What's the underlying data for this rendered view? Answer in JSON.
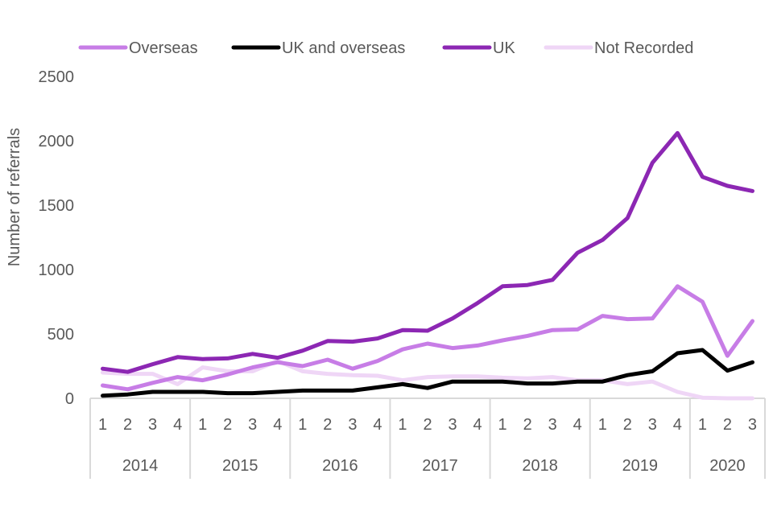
{
  "chart_data": {
    "type": "line",
    "title": "",
    "xlabel": "",
    "ylabel": "Number of referrals",
    "ylim": [
      0,
      2500
    ],
    "yticks": [
      "0",
      "500",
      "1000",
      "1500",
      "2000",
      "2500"
    ],
    "grid": false,
    "legend_position": "top",
    "years": [
      {
        "label": "2014",
        "quarters": [
          "1",
          "2",
          "3",
          "4"
        ]
      },
      {
        "label": "2015",
        "quarters": [
          "1",
          "2",
          "3",
          "4"
        ]
      },
      {
        "label": "2016",
        "quarters": [
          "1",
          "2",
          "3",
          "4"
        ]
      },
      {
        "label": "2017",
        "quarters": [
          "1",
          "2",
          "3",
          "4"
        ]
      },
      {
        "label": "2018",
        "quarters": [
          "1",
          "2",
          "3",
          "4"
        ]
      },
      {
        "label": "2019",
        "quarters": [
          "1",
          "2",
          "3",
          "4"
        ]
      },
      {
        "label": "2020",
        "quarters": [
          "1",
          "2",
          "3"
        ]
      }
    ],
    "series": [
      {
        "name": "Overseas",
        "color": "#C77DE6",
        "values": [
          100,
          70,
          120,
          165,
          140,
          185,
          240,
          280,
          250,
          300,
          230,
          290,
          380,
          425,
          390,
          410,
          450,
          485,
          530,
          535,
          640,
          615,
          620,
          870,
          750,
          330,
          600
        ]
      },
      {
        "name": "UK and overseas",
        "color": "#000000",
        "values": [
          20,
          30,
          50,
          50,
          50,
          40,
          40,
          50,
          60,
          60,
          60,
          85,
          110,
          80,
          130,
          130,
          130,
          115,
          115,
          130,
          130,
          180,
          210,
          350,
          375,
          215,
          280
        ]
      },
      {
        "name": "UK",
        "color": "#8C27B3",
        "values": [
          230,
          205,
          265,
          320,
          305,
          310,
          345,
          315,
          370,
          445,
          440,
          465,
          530,
          525,
          620,
          740,
          870,
          880,
          920,
          1130,
          1230,
          1400,
          1830,
          2060,
          1720,
          1650,
          1610
        ]
      },
      {
        "name": "Not Recorded",
        "color": "#EFD6F6",
        "values": [
          200,
          190,
          190,
          110,
          240,
          210,
          210,
          290,
          210,
          190,
          180,
          175,
          140,
          165,
          170,
          170,
          160,
          155,
          165,
          140,
          140,
          110,
          130,
          50,
          5,
          0,
          0
        ]
      }
    ]
  }
}
